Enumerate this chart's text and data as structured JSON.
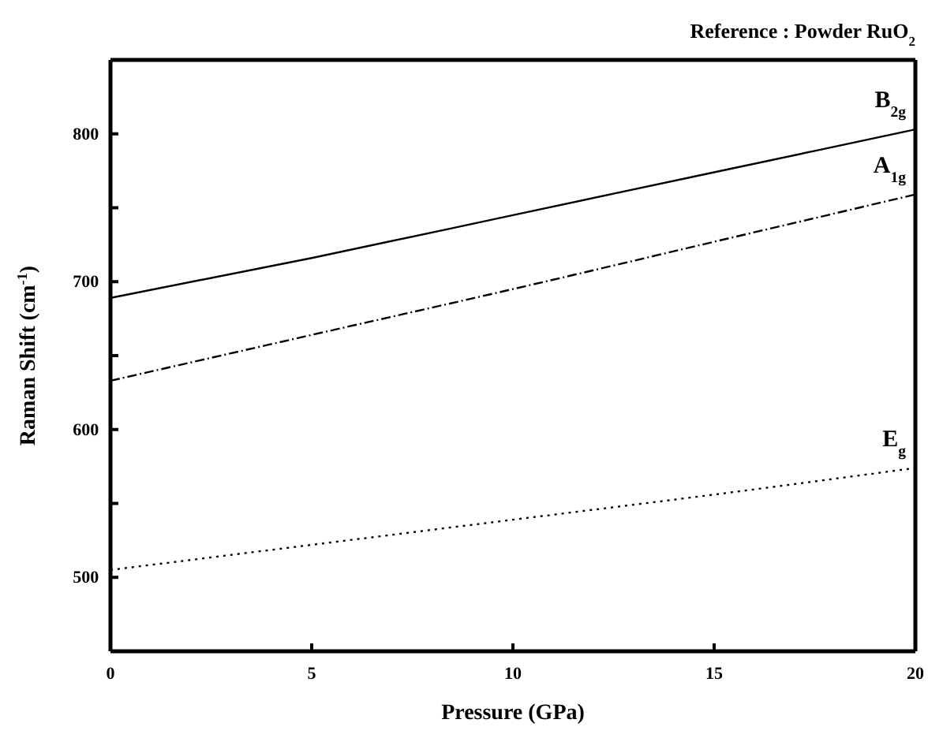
{
  "chart_data": {
    "type": "line",
    "title": "Reference : Powder RuO$_{2}$",
    "xlabel": "Pressure (GPa)",
    "ylabel": "Raman Shift (cm$^{-1}$)",
    "x": [
      0,
      5,
      10,
      15,
      20
    ],
    "series": [
      {
        "name": "B$_{2g}$",
        "color": "#000000",
        "line_style": "solid",
        "values": [
          689,
          716,
          745,
          774,
          803
        ]
      },
      {
        "name": "A$_{1g}$",
        "color": "#000000",
        "line_style": "dashed",
        "values": [
          633,
          664,
          695,
          727,
          759
        ]
      },
      {
        "name": "E$_{g}$",
        "color": "#000000",
        "line_style": "dotted",
        "values": [
          505,
          522,
          539,
          556,
          574
        ]
      }
    ],
    "xlim": [
      0,
      20
    ],
    "xticks": [
      0,
      5,
      10,
      15,
      20
    ],
    "ylim": [
      450,
      850
    ],
    "yticks": [
      {
        "value": 450,
        "label": null
      },
      500,
      {
        "value": 550,
        "label": null
      },
      600,
      {
        "value": 650,
        "label": null
      },
      700,
      {
        "value": 750,
        "label": null
      },
      800,
      {
        "value": 850,
        "label": null
      }
    ],
    "grid": false,
    "legend": false,
    "marker": "none"
  }
}
